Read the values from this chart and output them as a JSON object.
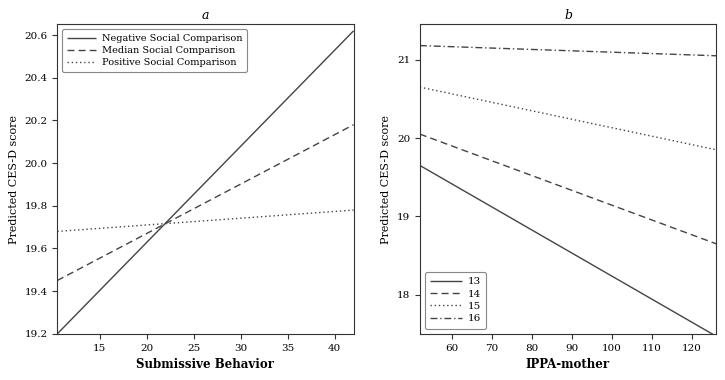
{
  "panel_a": {
    "title": "a",
    "xlabel": "Submissive Behavior",
    "ylabel": "Predicted CES-D score",
    "xlim": [
      10.5,
      42
    ],
    "ylim": [
      19.2,
      20.65
    ],
    "xticks": [
      15,
      20,
      25,
      30,
      35,
      40
    ],
    "yticks": [
      19.2,
      19.4,
      19.6,
      19.8,
      20.0,
      20.2,
      20.4,
      20.6
    ],
    "lines": [
      {
        "label": "Negative Social Comparison",
        "style": "solid",
        "x_start": 10.5,
        "y_start": 19.2,
        "x_end": 42,
        "y_end": 20.62,
        "color": "#444444",
        "lw": 1.0
      },
      {
        "label": "Median Social Comparison",
        "style": "dashed",
        "x_start": 10.5,
        "y_start": 19.45,
        "x_end": 42,
        "y_end": 20.18,
        "color": "#444444",
        "lw": 1.0
      },
      {
        "label": "Positive Social Comparison",
        "style": "dotted",
        "x_start": 10.5,
        "y_start": 19.68,
        "x_end": 42,
        "y_end": 19.78,
        "color": "#444444",
        "lw": 1.0
      }
    ]
  },
  "panel_b": {
    "title": "b",
    "xlabel": "IPPA-mother",
    "ylabel": "Predicted CES-D score",
    "xlim": [
      52,
      126
    ],
    "ylim": [
      17.5,
      21.45
    ],
    "xticks": [
      60,
      70,
      80,
      90,
      100,
      110,
      120
    ],
    "yticks": [
      18,
      19,
      20,
      21
    ],
    "lines": [
      {
        "label": "13",
        "style": "solid",
        "x_start": 52,
        "y_start": 19.65,
        "x_end": 126,
        "y_end": 17.47,
        "color": "#444444",
        "lw": 1.0
      },
      {
        "label": "14",
        "style": "dashed",
        "x_start": 52,
        "y_start": 20.05,
        "x_end": 126,
        "y_end": 18.65,
        "color": "#444444",
        "lw": 1.0
      },
      {
        "label": "15",
        "style": "dotted",
        "x_start": 52,
        "y_start": 20.65,
        "x_end": 126,
        "y_end": 19.85,
        "color": "#444444",
        "lw": 1.0
      },
      {
        "label": "16",
        "style": "dashdot",
        "x_start": 52,
        "y_start": 21.18,
        "x_end": 126,
        "y_end": 21.05,
        "color": "#444444",
        "lw": 1.0
      }
    ]
  },
  "bg_color": "#ffffff",
  "fig_bg": "#ffffff"
}
